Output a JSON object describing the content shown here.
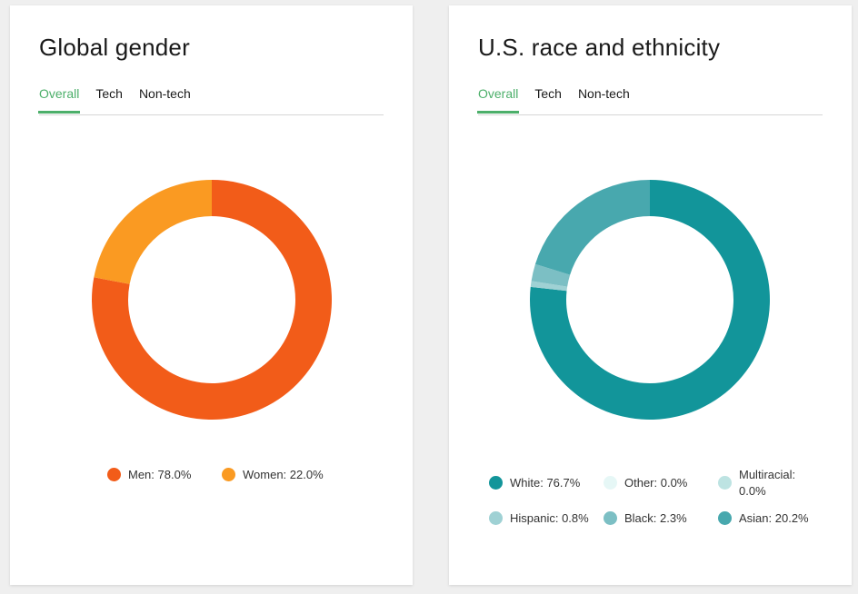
{
  "chart_data": [
    {
      "type": "pie",
      "title": "Global gender",
      "tabs": [
        "Overall",
        "Tech",
        "Non-tech"
      ],
      "active_tab": "Overall",
      "donut": true,
      "legend_position": "bottom",
      "slices": [
        {
          "label": "Men",
          "value": 78.0,
          "display": "Men: 78.0%",
          "color": "#f25c19"
        },
        {
          "label": "Women",
          "value": 22.0,
          "display": "Women: 22.0%",
          "color": "#fa9a22"
        }
      ]
    },
    {
      "type": "pie",
      "title": "U.S. race and ethnicity",
      "tabs": [
        "Overall",
        "Tech",
        "Non-tech"
      ],
      "active_tab": "Overall",
      "donut": true,
      "legend_position": "bottom",
      "slices": [
        {
          "label": "White",
          "value": 76.7,
          "display": "White: 76.7%",
          "color": "#12959a"
        },
        {
          "label": "Other",
          "value": 0.0,
          "display": "Other: 0.0%",
          "color": "#e6f7f6"
        },
        {
          "label": "Multiracial",
          "value": 0.0,
          "display": "Multiracial: 0.0%",
          "color": "#bde3e2"
        },
        {
          "label": "Hispanic",
          "value": 0.8,
          "display": "Hispanic: 0.8%",
          "color": "#9fd1d4"
        },
        {
          "label": "Black",
          "value": 2.3,
          "display": "Black: 2.3%",
          "color": "#7cbfc4"
        },
        {
          "label": "Asian",
          "value": 20.2,
          "display": "Asian: 20.2%",
          "color": "#48a8ae"
        }
      ]
    }
  ]
}
